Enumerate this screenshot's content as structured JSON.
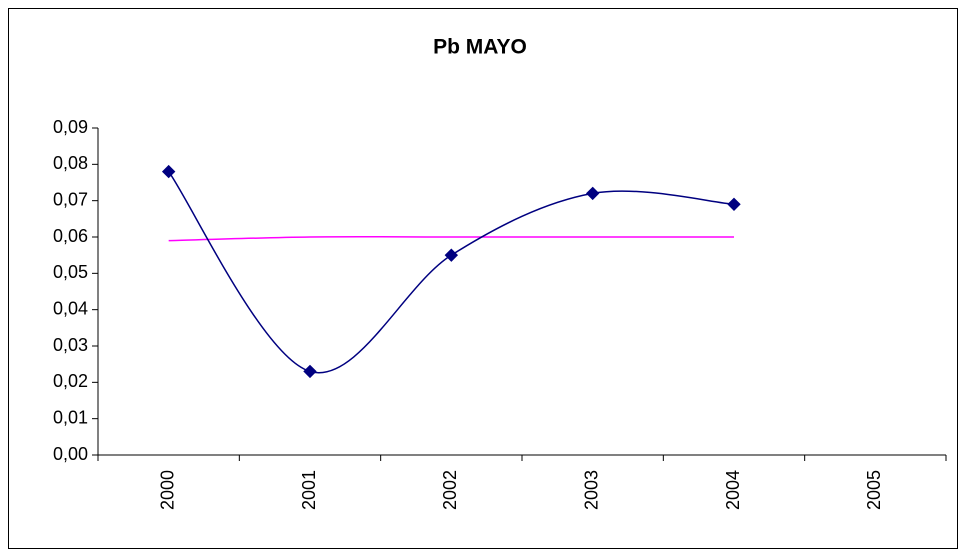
{
  "chart_data": {
    "type": "line",
    "title": "Pb MAYO",
    "categories": [
      "2000",
      "2001",
      "2002",
      "2003",
      "2004",
      "2005"
    ],
    "series": [
      {
        "color": "#000080",
        "marker": "diamond",
        "smooth": true,
        "values": [
          0.078,
          0.023,
          0.055,
          0.072,
          0.069,
          null
        ]
      },
      {
        "color": "#ff00ff",
        "marker": "none",
        "smooth": true,
        "values": [
          0.059,
          0.06,
          0.06,
          0.06,
          0.06,
          null
        ]
      }
    ],
    "ylim": [
      0,
      0.09
    ],
    "yticks": [
      {
        "value": 0,
        "label": "0,00"
      },
      {
        "value": 0.01,
        "label": "0,01"
      },
      {
        "value": 0.02,
        "label": "0,02"
      },
      {
        "value": 0.03,
        "label": "0,03"
      },
      {
        "value": 0.04,
        "label": "0,04"
      },
      {
        "value": 0.05,
        "label": "0,05"
      },
      {
        "value": 0.06,
        "label": "0,06"
      },
      {
        "value": 0.07,
        "label": "0,07"
      },
      {
        "value": 0.08,
        "label": "0,08"
      },
      {
        "value": 0.09,
        "label": "0,09"
      }
    ],
    "grid": false
  }
}
